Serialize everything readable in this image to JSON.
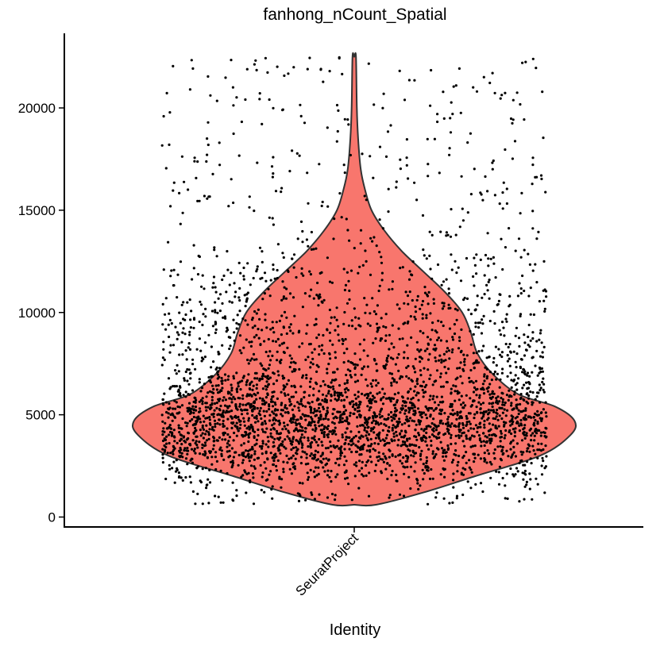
{
  "chart_data": {
    "type": "violin",
    "title": "fanhong_nCount_Spatial",
    "xlabel": "Identity",
    "ylabel": "",
    "categories": [
      "SeuratProject"
    ],
    "ylim": [
      -500,
      23200
    ],
    "yticks": [
      0,
      5000,
      10000,
      15000,
      20000
    ],
    "yticklabels": [
      "0",
      "5000",
      "10000",
      "15000",
      "20000"
    ],
    "grid": false,
    "legend": "none",
    "series": [
      {
        "category": "SeuratProject",
        "fill_color": "#F8766D",
        "outline_color": "#333333",
        "point_color": "#000000",
        "min": 600,
        "max": 22500,
        "density_profile": [
          {
            "y": 600,
            "w": 0.1
          },
          {
            "y": 1200,
            "w": 0.32
          },
          {
            "y": 2000,
            "w": 0.56
          },
          {
            "y": 3000,
            "w": 0.86
          },
          {
            "y": 4000,
            "w": 1.0
          },
          {
            "y": 4700,
            "w": 1.02
          },
          {
            "y": 5400,
            "w": 0.93
          },
          {
            "y": 6000,
            "w": 0.76
          },
          {
            "y": 7000,
            "w": 0.64
          },
          {
            "y": 8000,
            "w": 0.57
          },
          {
            "y": 9000,
            "w": 0.54
          },
          {
            "y": 10000,
            "w": 0.5
          },
          {
            "y": 11000,
            "w": 0.42
          },
          {
            "y": 12000,
            "w": 0.32
          },
          {
            "y": 13000,
            "w": 0.22
          },
          {
            "y": 14000,
            "w": 0.14
          },
          {
            "y": 15000,
            "w": 0.08
          },
          {
            "y": 16000,
            "w": 0.05
          },
          {
            "y": 17000,
            "w": 0.03
          },
          {
            "y": 18500,
            "w": 0.018
          },
          {
            "y": 20000,
            "w": 0.012
          },
          {
            "y": 22500,
            "w": 0.008
          }
        ]
      }
    ]
  }
}
